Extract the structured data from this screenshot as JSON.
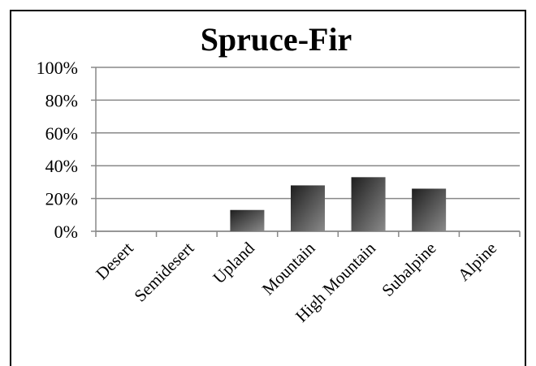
{
  "chart_data": {
    "type": "bar",
    "title": "Spruce-Fir",
    "categories": [
      "Desert",
      "Semidesert",
      "Upland",
      "Mountain",
      "High Mountain",
      "Subalpine",
      "Alpine"
    ],
    "values": [
      0,
      0,
      13,
      28,
      33,
      26,
      0
    ],
    "color": "#1e1e1e",
    "ylim": [
      0,
      100
    ],
    "yticks": [
      {
        "value": 0,
        "label": "0%"
      },
      {
        "value": 20,
        "label": "20%"
      },
      {
        "value": 40,
        "label": "40%"
      },
      {
        "value": 60,
        "label": "60%"
      },
      {
        "value": 80,
        "label": "80%"
      },
      {
        "value": 100,
        "label": "100%"
      }
    ],
    "grid": true
  }
}
